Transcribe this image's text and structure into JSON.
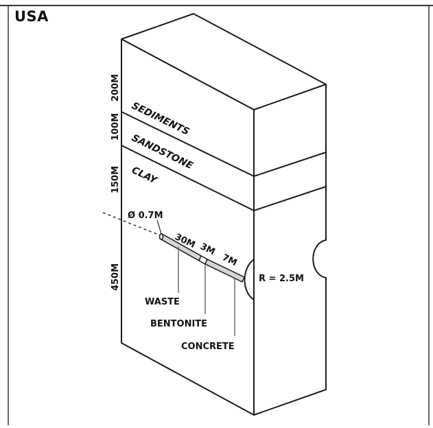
{
  "title": "USA",
  "depths": {
    "sediments": "200M",
    "sandstone": "100M",
    "clay": "150M",
    "host_rock": "450M"
  },
  "layers": {
    "sediments": "SEDIMENTS",
    "sandstone": "SANDSTONE",
    "clay": "CLAY"
  },
  "borehole": {
    "diameter": "Ø 0.7M",
    "waste_length": "30M",
    "bentonite_length": "3M",
    "concrete_length": "7M",
    "tunnel_radius": "R = 2.5M"
  },
  "callouts": {
    "waste": "WASTE",
    "bentonite": "BENTONITE",
    "concrete": "CONCRETE"
  }
}
